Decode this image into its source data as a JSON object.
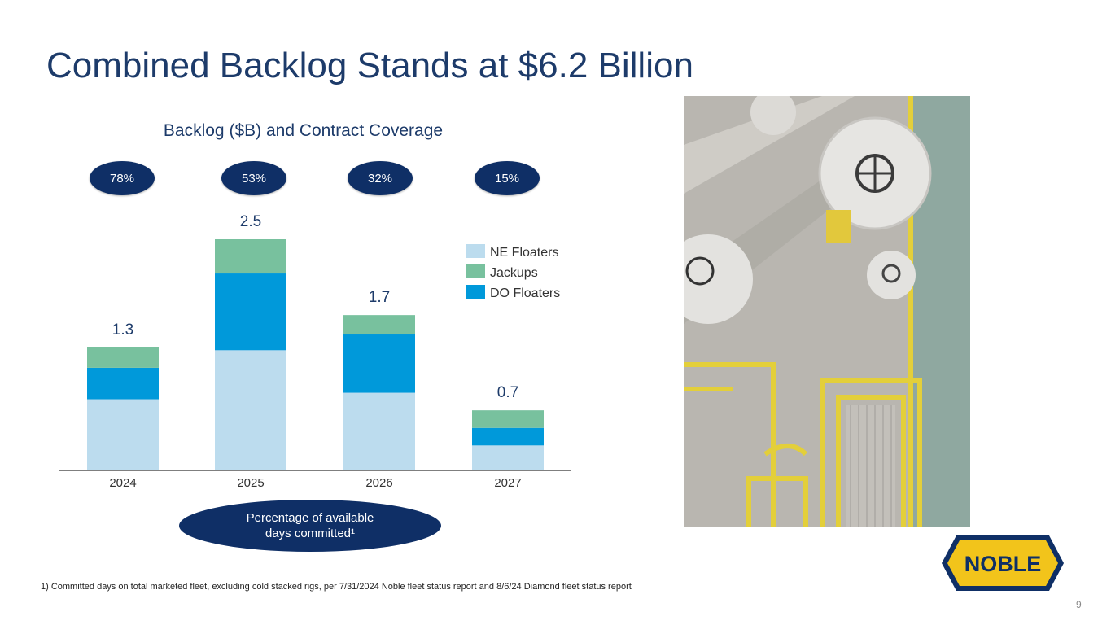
{
  "page": {
    "title": "Combined Backlog Stands at $6.2 Billion",
    "footnote": "1) Committed days on total marketed fleet, excluding cold stacked rigs, per 7/31/2024 Noble fleet status report and 8/6/24 Diamond fleet status report",
    "page_number": "9",
    "commit_label_line1": "Percentage of available",
    "commit_label_line2": "days committed¹",
    "logo_text": "NOBLE"
  },
  "coverage": [
    "78%",
    "53%",
    "32%",
    "15%"
  ],
  "chart_data": {
    "type": "bar",
    "stacked": true,
    "title": "Backlog ($B) and Contract Coverage",
    "categories": [
      "2024",
      "2025",
      "2026",
      "2027"
    ],
    "series": [
      {
        "name": "NE Floaters",
        "color": "#bcdcee",
        "values": [
          0.77,
          1.3,
          0.84,
          0.27
        ]
      },
      {
        "name": "DO Floaters",
        "color": "#0099da",
        "values": [
          0.34,
          0.83,
          0.63,
          0.19
        ]
      },
      {
        "name": "Jackups",
        "color": "#78c19e",
        "values": [
          0.22,
          0.37,
          0.21,
          0.19
        ]
      }
    ],
    "totals": [
      "1.3",
      "2.5",
      "1.7",
      "0.7"
    ],
    "legend": [
      "NE Floaters",
      "Jackups",
      "DO Floaters"
    ],
    "legend_colors": [
      "#bcdcee",
      "#78c19e",
      "#0099da"
    ],
    "legend_position": "top-right",
    "ylim": [
      0,
      2.5
    ],
    "grid": false
  }
}
